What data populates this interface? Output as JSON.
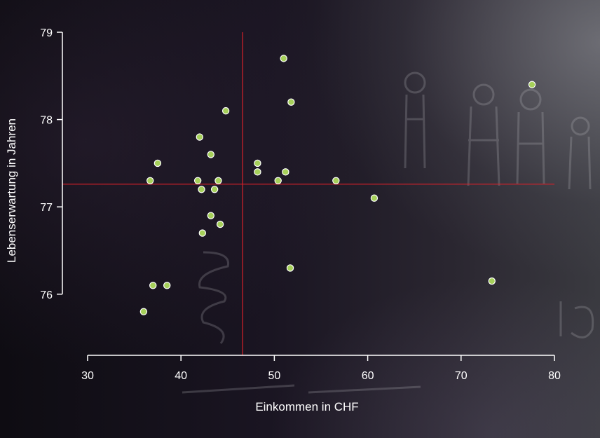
{
  "chart_data": {
    "type": "scatter",
    "xlabel": "Einkommen in CHF",
    "ylabel": "Lebenserwartung in Jahren",
    "xlim": [
      27.3,
      80
    ],
    "ylim": [
      75.3,
      79
    ],
    "x_ticks": [
      "30",
      "40",
      "50",
      "60",
      "70",
      "80"
    ],
    "y_ticks": [
      "76",
      "77",
      "78",
      "79"
    ],
    "reference_lines": {
      "x": 46.6,
      "y": 77.26
    },
    "grid": false,
    "points": [
      {
        "x": 36.0,
        "y": 75.8
      },
      {
        "x": 36.7,
        "y": 77.3
      },
      {
        "x": 37.0,
        "y": 76.1
      },
      {
        "x": 37.5,
        "y": 77.5
      },
      {
        "x": 38.5,
        "y": 76.1
      },
      {
        "x": 41.8,
        "y": 77.3
      },
      {
        "x": 42.0,
        "y": 77.8
      },
      {
        "x": 42.2,
        "y": 77.2
      },
      {
        "x": 42.3,
        "y": 76.7
      },
      {
        "x": 43.2,
        "y": 77.6
      },
      {
        "x": 43.2,
        "y": 76.9
      },
      {
        "x": 43.6,
        "y": 77.2
      },
      {
        "x": 44.0,
        "y": 77.3
      },
      {
        "x": 44.2,
        "y": 76.8
      },
      {
        "x": 44.8,
        "y": 78.1
      },
      {
        "x": 48.2,
        "y": 77.5
      },
      {
        "x": 48.2,
        "y": 77.4
      },
      {
        "x": 50.4,
        "y": 77.3
      },
      {
        "x": 51.0,
        "y": 78.7
      },
      {
        "x": 51.2,
        "y": 77.4
      },
      {
        "x": 51.7,
        "y": 76.3
      },
      {
        "x": 51.8,
        "y": 78.2
      },
      {
        "x": 56.6,
        "y": 77.3
      },
      {
        "x": 60.7,
        "y": 77.1
      },
      {
        "x": 73.3,
        "y": 76.15
      },
      {
        "x": 77.6,
        "y": 78.4
      }
    ]
  },
  "colors": {
    "axis": "#ffffff",
    "point_fill": "#a6d05a",
    "point_stroke": "#ffffff",
    "reference_line": "#d8212a"
  }
}
